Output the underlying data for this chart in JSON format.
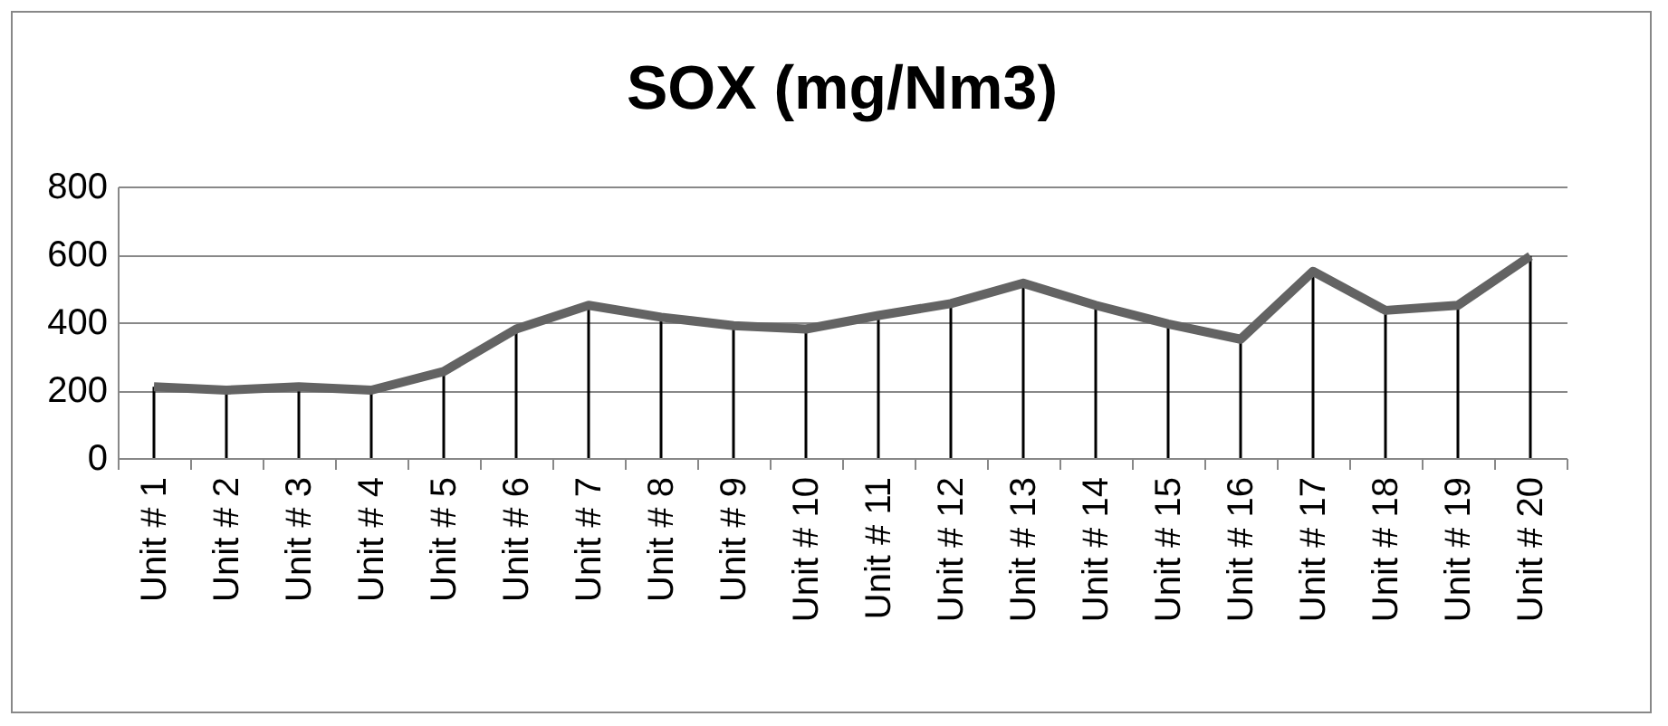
{
  "chart_data": {
    "type": "line",
    "title": "SOX (mg/Nm3)",
    "categories": [
      "Unit # 1",
      "Unit # 2",
      "Unit # 3",
      "Unit # 4",
      "Unit # 5",
      "Unit # 6",
      "Unit # 7",
      "Unit # 8",
      "Unit # 9",
      "Unit # 10",
      "Unit # 11",
      "Unit # 12",
      "Unit # 13",
      "Unit # 14",
      "Unit # 15",
      "Unit # 16",
      "Unit # 17",
      "Unit # 18",
      "Unit # 19",
      "Unit # 20"
    ],
    "series": [
      {
        "color": "#636363",
        "values": [
          210,
          200,
          210,
          200,
          255,
          380,
          450,
          415,
          390,
          380,
          420,
          455,
          515,
          450,
          395,
          350,
          550,
          435,
          450,
          595
        ],
        "errors": [
          [
            0,
            210
          ],
          [
            0,
            200
          ],
          [
            0,
            210
          ],
          [
            0,
            200
          ],
          [
            0,
            255
          ],
          [
            0,
            380
          ],
          [
            0,
            450
          ],
          [
            0,
            415
          ],
          [
            0,
            390
          ],
          [
            0,
            380
          ],
          [
            0,
            420
          ],
          [
            0,
            455
          ],
          [
            0,
            515
          ],
          [
            0,
            450
          ],
          [
            0,
            395
          ],
          [
            0,
            350
          ],
          [
            0,
            550
          ],
          [
            0,
            435
          ],
          [
            0,
            450
          ],
          [
            0,
            595
          ]
        ]
      }
    ],
    "ylim": [
      0,
      800
    ],
    "yticks": [
      0,
      200,
      400,
      600,
      800
    ],
    "grid": "y"
  }
}
